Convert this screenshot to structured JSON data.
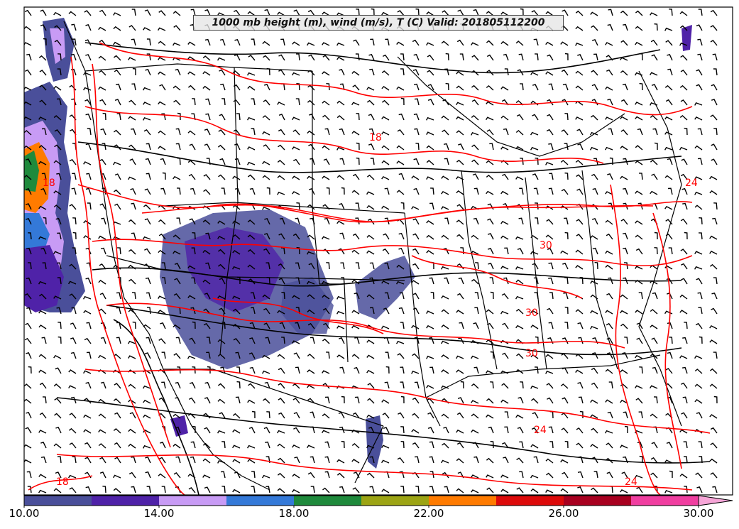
{
  "title": "1000 mb height (m), wind (m/s), T (C) Valid: 201805112200",
  "colorbar": {
    "min": 10,
    "max": 30,
    "step": 2,
    "tick_labels": [
      "10.00",
      "14.00",
      "18.00",
      "22.00",
      "26.00",
      "30.00"
    ],
    "tick_values": [
      10,
      14,
      18,
      22,
      26,
      30
    ],
    "extend": "max",
    "colors": [
      "#4a4f9a",
      "#4f22a8",
      "#c89bf5",
      "#3479d8",
      "#1f8a3c",
      "#9ca414",
      "#ff7b00",
      "#dd0a0a",
      "#a80020",
      "#f03ea0"
    ],
    "extend_color": "#f7a6d8"
  },
  "contour_labels": [
    "18",
    "18",
    "24",
    "24",
    "24",
    "30",
    "30",
    "30",
    "18"
  ],
  "colors": {
    "temperature_contour": "#ff0000",
    "height_contour": "#000000",
    "boundaries": "#000000",
    "wind_barbs": "#000000"
  }
}
